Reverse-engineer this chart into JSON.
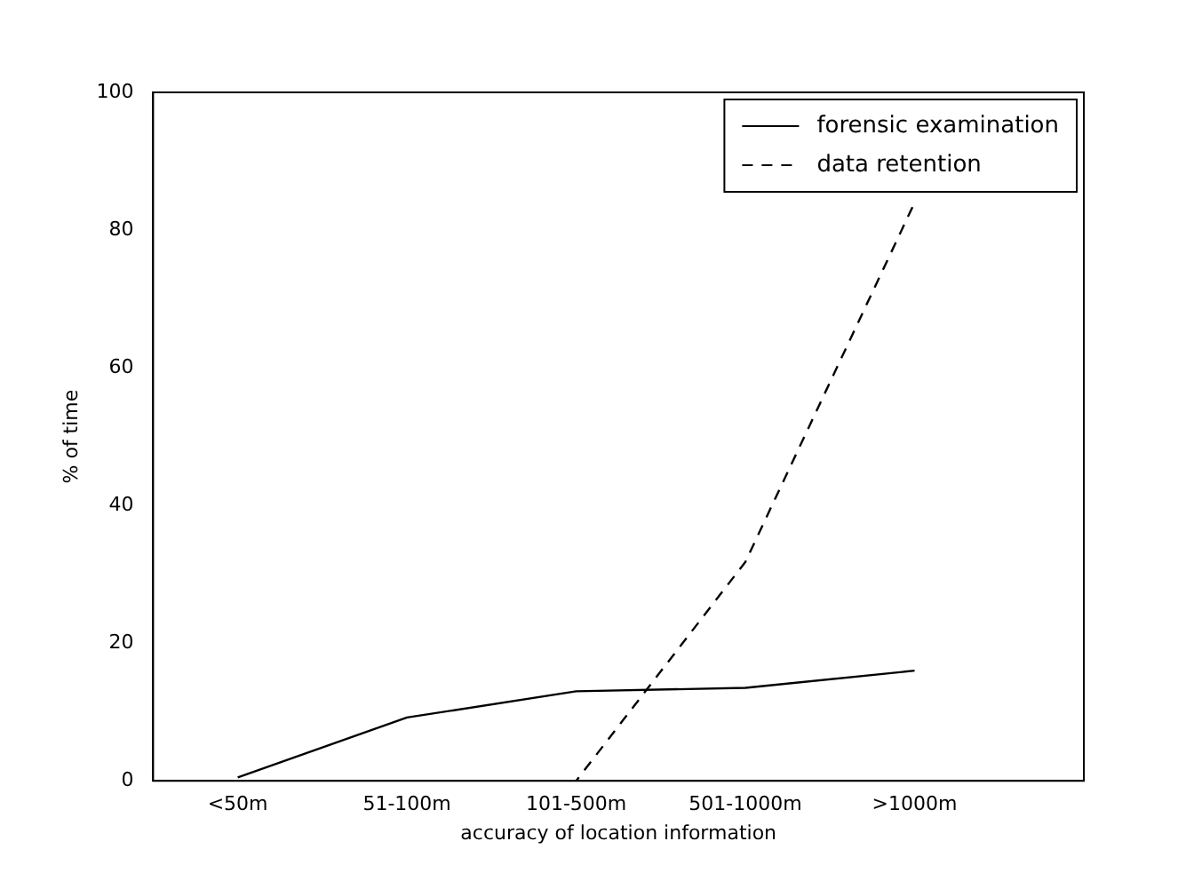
{
  "chart_data": {
    "type": "line",
    "xlabel": "accuracy of location information",
    "ylabel": "% of time",
    "categories": [
      "<50m",
      "51-100m",
      "101-500m",
      "501-1000m",
      ">1000m"
    ],
    "series": [
      {
        "name": "forensic examination",
        "color": "#000000",
        "line_style": "solid",
        "values": [
          0.5,
          9.2,
          13.0,
          13.5,
          16.0
        ]
      },
      {
        "name": "data retention",
        "color": "#000000",
        "line_style": "dashed",
        "values": [
          0,
          0,
          0,
          31.8,
          84
        ]
      }
    ],
    "ylim": [
      0,
      100
    ],
    "yticks": [
      0,
      20,
      40,
      60,
      80,
      100
    ],
    "grid": false,
    "legend": "top right",
    "marker": "none"
  }
}
